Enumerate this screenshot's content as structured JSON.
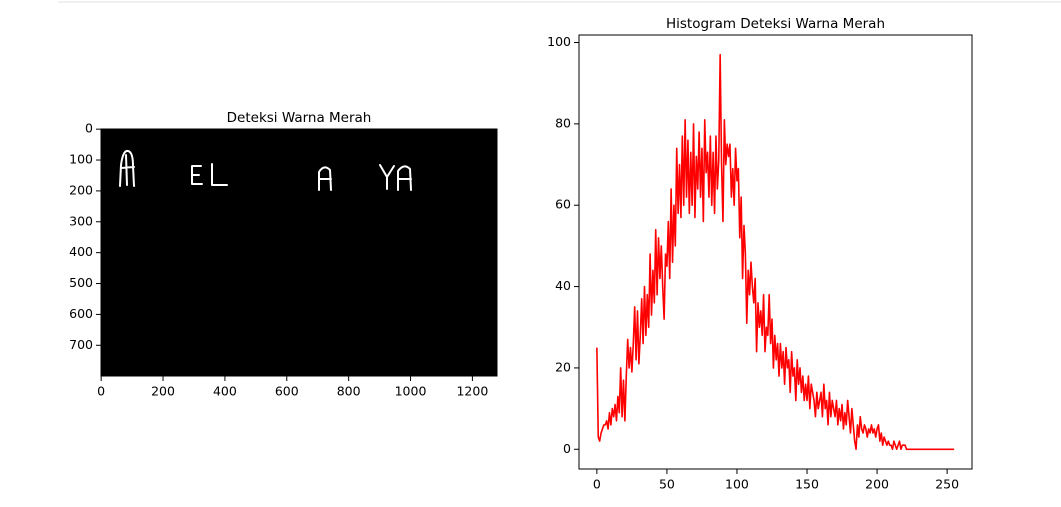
{
  "chart_data": [
    {
      "type": "image",
      "title": "Deteksi Warna Merah",
      "xlim": [
        -0.5,
        1279.5
      ],
      "ylim": [
        799.5,
        -0.5
      ],
      "xticks": [
        0,
        200,
        400,
        600,
        800,
        1000,
        1200
      ],
      "yticks": [
        0,
        100,
        200,
        300,
        400,
        500,
        600,
        700
      ]
    },
    {
      "type": "line",
      "title": "Histogram Deteksi Warna Merah",
      "color": "#ff0000",
      "xlim": [
        -12.75,
        267.75
      ],
      "ylim": [
        -4.85,
        101.85
      ],
      "xticks": [
        0,
        50,
        100,
        150,
        200,
        250
      ],
      "yticks": [
        0,
        20,
        40,
        60,
        80,
        100
      ],
      "values": [
        25,
        3,
        2,
        4,
        5,
        6,
        6,
        7,
        5,
        9,
        6,
        10,
        8,
        11,
        7,
        13,
        9,
        20,
        8,
        17,
        7,
        18,
        27,
        20,
        25,
        19,
        26,
        35,
        22,
        34,
        21,
        28,
        37,
        26,
        40,
        28,
        38,
        30,
        48,
        33,
        44,
        36,
        54,
        38,
        52,
        42,
        50,
        40,
        32,
        48,
        45,
        56,
        42,
        64,
        46,
        60,
        50,
        74,
        58,
        70,
        57,
        77,
        60,
        81,
        62,
        76,
        58,
        73,
        60,
        80,
        57,
        72,
        64,
        78,
        62,
        74,
        56,
        81,
        68,
        73,
        62,
        77,
        60,
        73,
        58,
        77,
        64,
        71,
        97,
        70,
        56,
        81,
        70,
        75,
        72,
        75,
        62,
        69,
        60,
        74,
        66,
        69,
        52,
        62,
        42,
        55,
        48,
        31,
        44,
        38,
        46,
        40,
        36,
        42,
        24,
        36,
        30,
        34,
        28,
        38,
        24,
        30,
        28,
        38,
        26,
        32,
        20,
        28,
        22,
        26,
        18,
        26,
        20,
        24,
        16,
        25,
        20,
        22,
        14,
        24,
        18,
        20,
        12,
        22,
        16,
        20,
        14,
        18,
        12,
        16,
        12,
        18,
        10,
        16,
        14,
        12,
        8,
        14,
        10,
        12,
        14,
        8,
        16,
        10,
        12,
        6,
        14,
        8,
        12,
        10,
        8,
        12,
        6,
        10,
        7,
        11,
        5,
        9,
        6,
        12,
        8,
        4,
        10,
        6,
        2,
        0,
        6,
        3,
        8,
        5,
        4,
        6,
        5,
        3,
        5,
        4,
        6,
        4,
        5,
        3,
        5,
        6,
        2,
        4,
        1,
        3,
        2,
        1,
        2,
        1,
        1,
        0,
        2,
        1,
        0,
        1,
        2,
        0,
        1,
        1,
        1,
        0,
        0,
        0,
        0,
        0,
        0,
        0,
        0,
        0,
        0,
        0,
        0,
        0,
        0,
        0,
        0,
        0,
        0,
        0,
        0,
        0,
        0,
        0,
        0,
        0,
        0,
        0,
        0,
        0,
        0,
        0,
        0,
        0,
        0,
        0
      ]
    }
  ]
}
